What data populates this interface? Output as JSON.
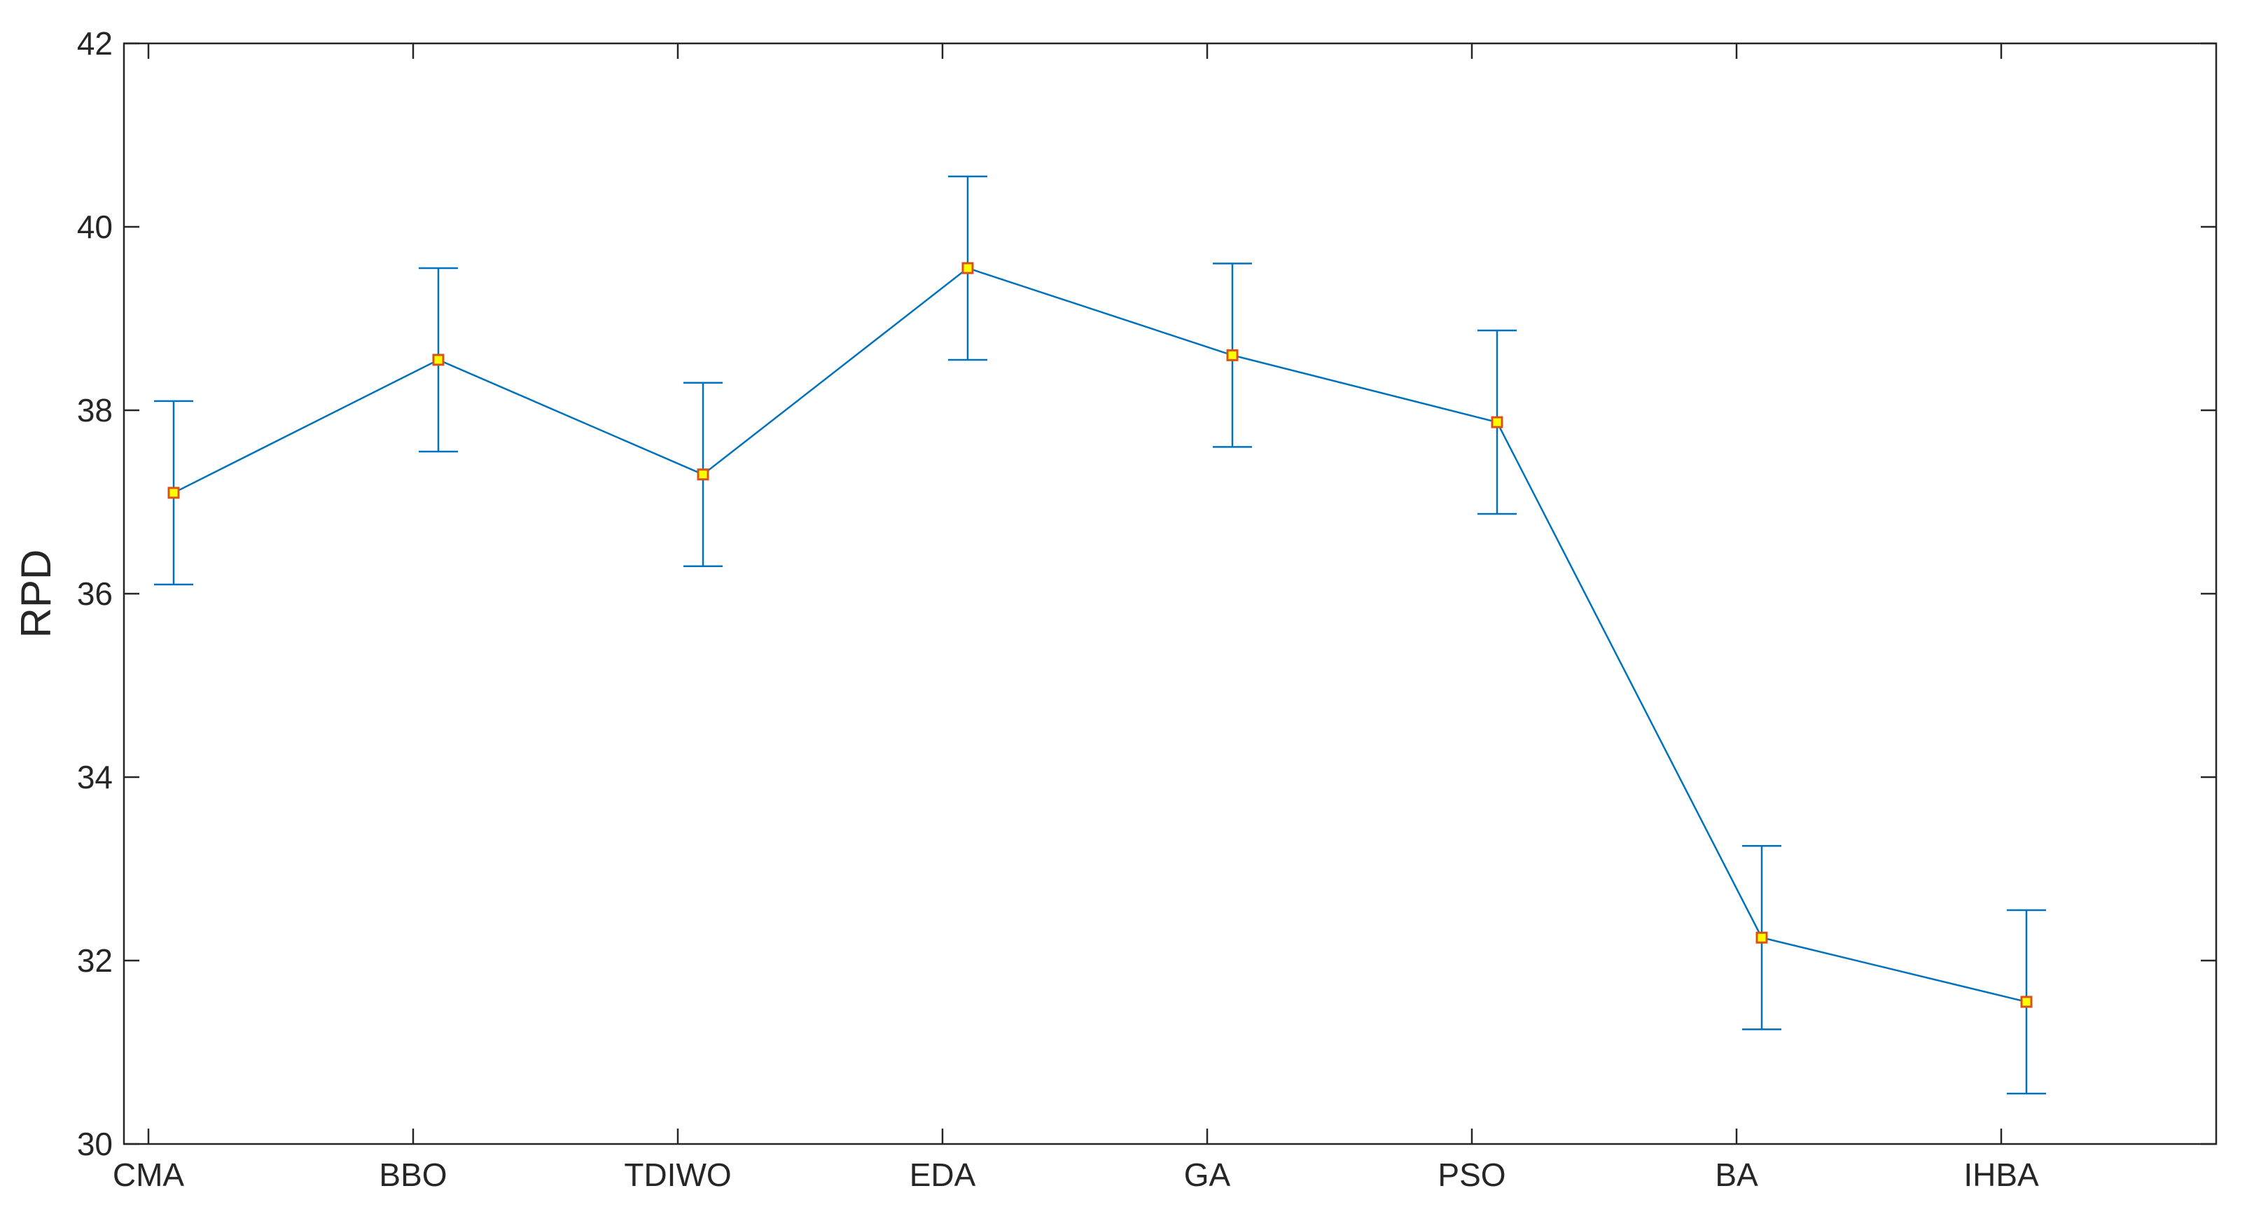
{
  "chart_data": {
    "type": "line",
    "ylabel": "RPD",
    "xlabel": "",
    "title": "",
    "categories": [
      "CMA",
      "BBO",
      "TDIWO",
      "EDA",
      "GA",
      "PSO",
      "BA",
      "IHBA"
    ],
    "series": [
      {
        "values": [
          37.1,
          38.55,
          37.3,
          39.55,
          38.6,
          37.87,
          32.25,
          31.55
        ],
        "error_lower": [
          36.1,
          37.55,
          36.3,
          38.55,
          37.6,
          36.87,
          31.25,
          30.55
        ],
        "error_upper": [
          38.1,
          39.55,
          38.3,
          40.55,
          39.6,
          38.87,
          33.25,
          32.55
        ],
        "line_color": "#0072BD",
        "marker": "square",
        "marker_fill": "#FFFF00",
        "marker_edge": "#D95319"
      }
    ],
    "ylim": [
      30,
      42
    ],
    "yticks": [
      30,
      32,
      34,
      36,
      38,
      40,
      42
    ],
    "ytick_labels": [
      "30",
      "32",
      "34",
      "36",
      "38",
      "40",
      "42"
    ],
    "grid": false,
    "axes_color": "#262626"
  }
}
